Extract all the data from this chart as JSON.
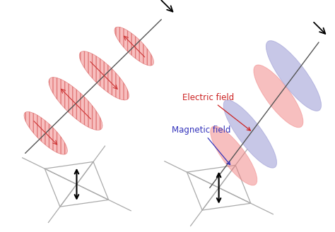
{
  "electric_field_color": "#f08080",
  "electric_field_alpha": 0.5,
  "magnetic_field_color": "#9090d0",
  "magnetic_field_alpha": 0.5,
  "electric_field_label": "Electric field",
  "magnetic_field_label": "Magnetic field",
  "electric_label_color": "#cc2222",
  "magnetic_label_color": "#3333bb",
  "bg_color": "#ffffff",
  "hatch_color": "#cc3333",
  "axis_color": "#555555",
  "plate_color": "#aaaaaa"
}
